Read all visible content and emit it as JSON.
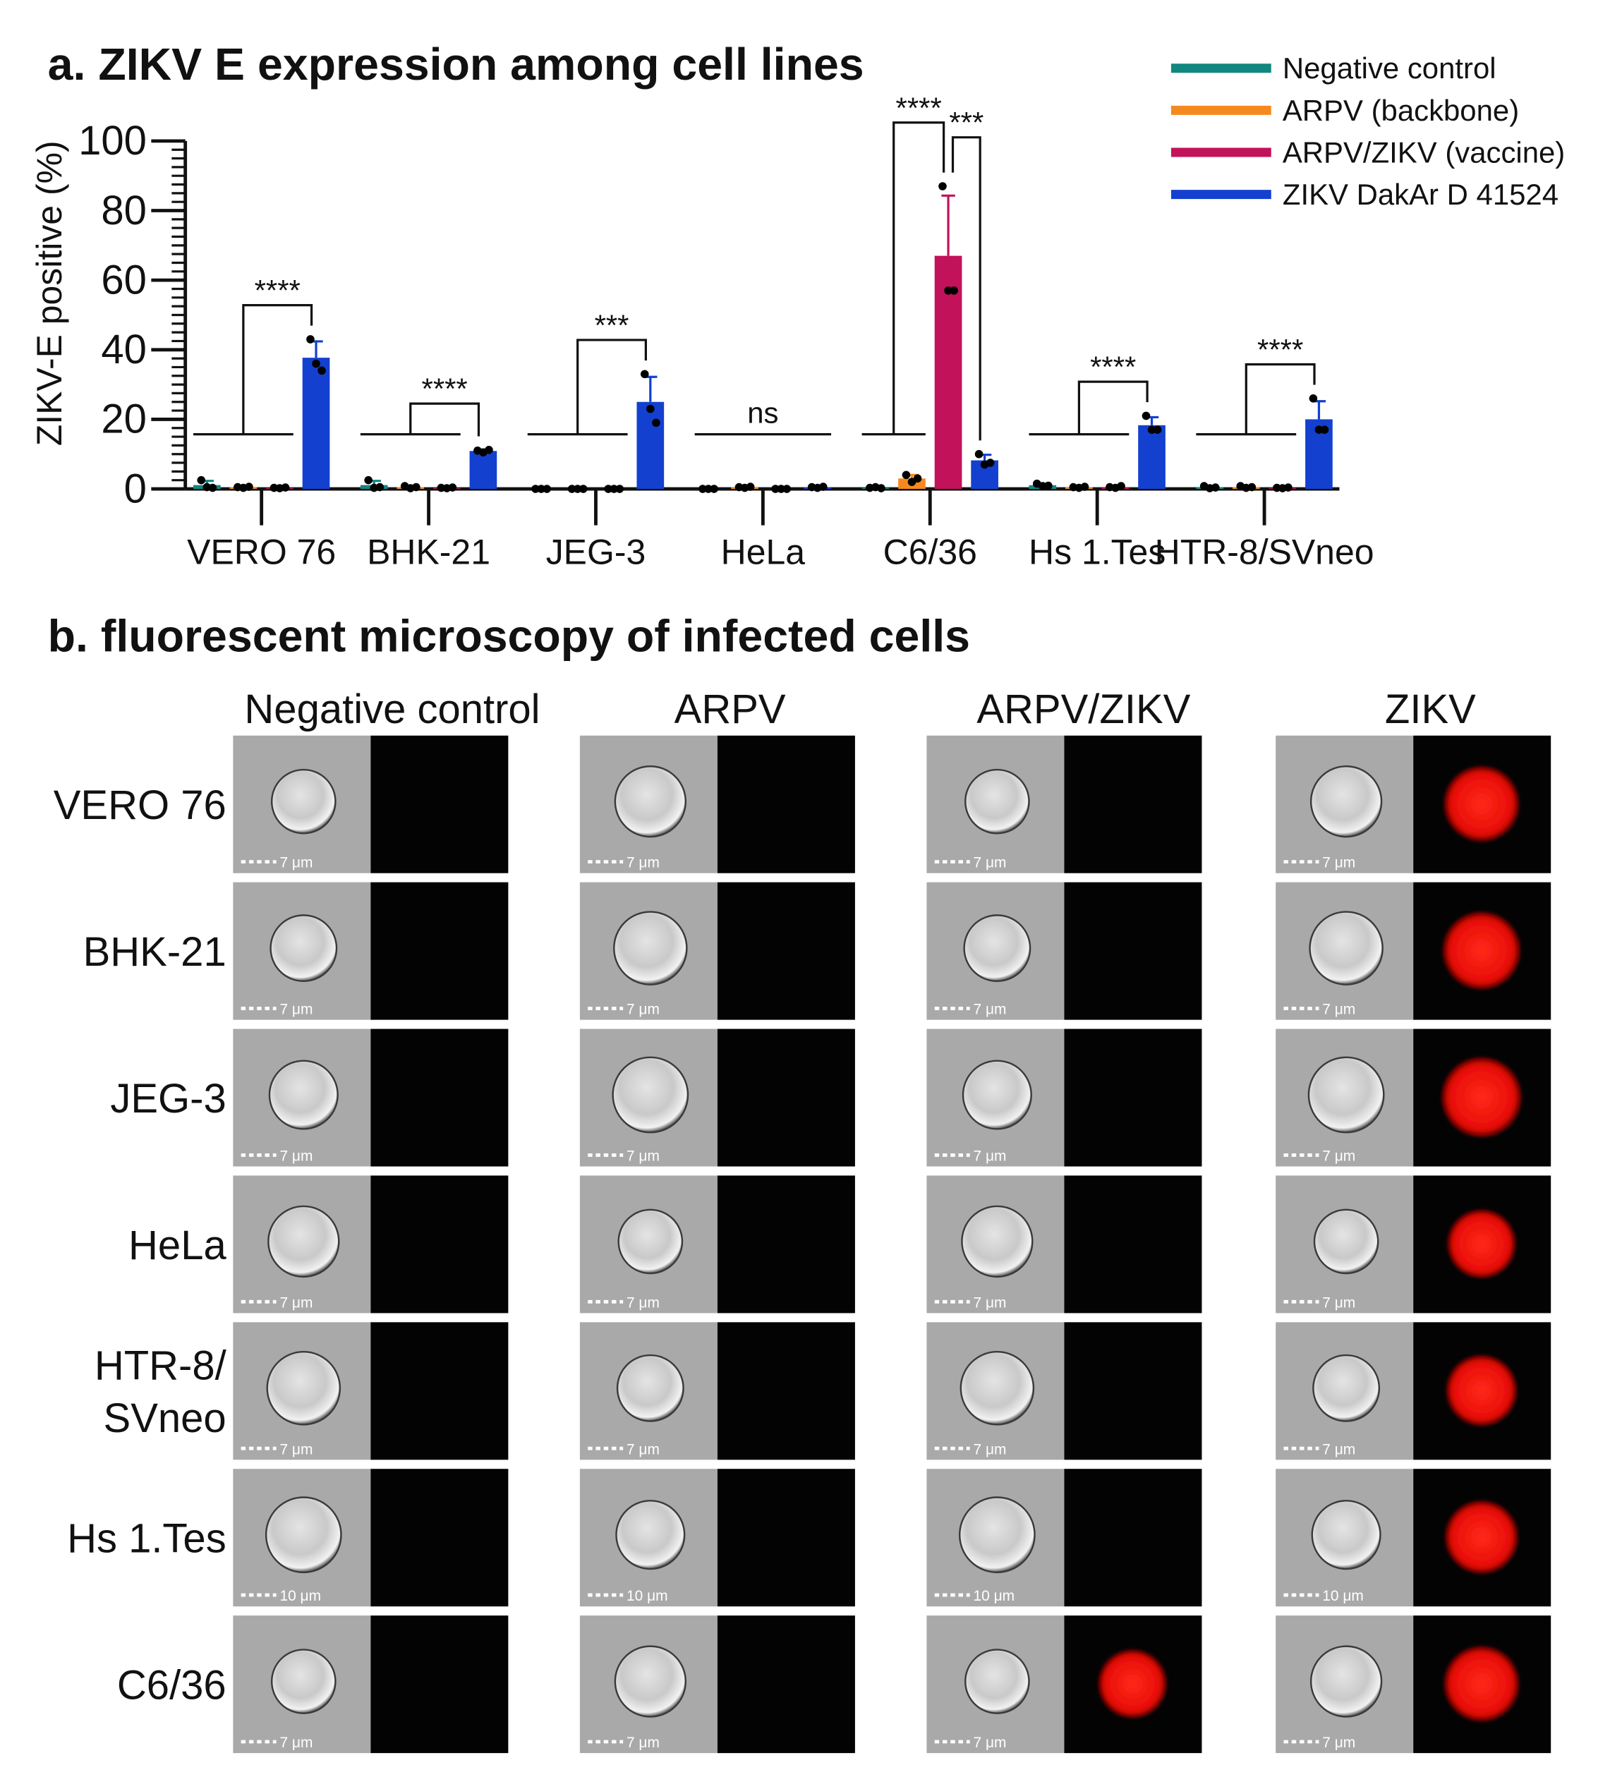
{
  "chart_data": {
    "type": "bar",
    "title": "a. ZIKV E expression among cell lines",
    "y_label": "ZIKV-E positive (%)",
    "categories": [
      "VERO 76",
      "BHK-21",
      "JEG-3",
      "HeLa",
      "C6/36",
      "Hs 1.Tes",
      "HTR-8/SVneo"
    ],
    "series": [
      {
        "name": "Negative control",
        "color": "#12877f",
        "values": [
          1.1,
          1.1,
          0,
          0,
          0.33,
          1.07,
          0.47
        ],
        "errors": [
          1.2,
          1.2,
          0,
          0,
          0.2,
          0.4,
          0.3
        ],
        "points": [
          [
            2.5,
            0.5,
            0.3
          ],
          [
            2.5,
            0.3,
            0.5
          ],
          [
            0,
            0,
            0
          ],
          [
            0,
            0,
            0
          ],
          [
            0.3,
            0.5,
            0.2
          ],
          [
            1.5,
            0.8,
            0.9
          ],
          [
            0.8,
            0.2,
            0.4
          ]
        ]
      },
      {
        "name": "ARPV (backbone)",
        "color": "#f5891f",
        "values": [
          0.47,
          0.5,
          0,
          0.47,
          3,
          0.47,
          0.53
        ],
        "errors": [
          0.2,
          0.3,
          0,
          0.2,
          1,
          0.2,
          0.3
        ],
        "points": [
          [
            0.5,
            0.3,
            0.6
          ],
          [
            0.8,
            0.2,
            0.5
          ],
          [
            0,
            0,
            0
          ],
          [
            0.5,
            0.3,
            0.6
          ],
          [
            4,
            2,
            3
          ],
          [
            0.5,
            0.3,
            0.6
          ],
          [
            0.8,
            0.3,
            0.5
          ]
        ]
      },
      {
        "name": "ARPV/ZIKV (vaccine)",
        "color": "#c2125a",
        "values": [
          0.3,
          0.3,
          0,
          0,
          67,
          0.53,
          0.3
        ],
        "errors": [
          0.1,
          0.1,
          0,
          0,
          17.3,
          0.3,
          0.1
        ],
        "points": [
          [
            0.3,
            0.2,
            0.4
          ],
          [
            0.3,
            0.2,
            0.4
          ],
          [
            0,
            0,
            0
          ],
          [
            0,
            0,
            0
          ],
          [
            87,
            57,
            57
          ],
          [
            0.5,
            0.3,
            0.8
          ],
          [
            0.3,
            0.2,
            0.4
          ]
        ]
      },
      {
        "name": "ZIKV DakAr D 41524",
        "color": "#1340cf",
        "values": [
          37.7,
          10.9,
          25,
          0.47,
          8.2,
          18.3,
          20
        ],
        "errors": [
          4.7,
          0.4,
          7.2,
          0.2,
          1.6,
          2.3,
          5.2
        ],
        "points": [
          [
            43,
            36,
            34
          ],
          [
            11,
            10.5,
            11.2
          ],
          [
            33,
            23,
            19
          ],
          [
            0.5,
            0.3,
            0.6
          ],
          [
            10,
            7,
            7.5
          ],
          [
            21,
            17,
            17
          ],
          [
            26,
            17,
            17
          ]
        ]
      }
    ],
    "ylim": [
      0,
      100
    ],
    "yticks": [
      0,
      20,
      40,
      60,
      80,
      100
    ],
    "legend": "top-right",
    "significance": [
      [
        {
          "label": "****",
          "left": [
            0,
            1,
            2
          ],
          "right": [
            3
          ]
        }
      ],
      [
        {
          "label": "****",
          "left": [
            0,
            1,
            2
          ],
          "right": [
            3
          ]
        }
      ],
      [
        {
          "label": "***",
          "left": [
            0,
            1,
            2
          ],
          "right": [
            3
          ]
        }
      ],
      [
        {
          "label": "ns",
          "left": [
            0,
            1,
            2,
            3
          ],
          "right": []
        }
      ],
      [
        {
          "label": "****",
          "left": [
            0,
            1
          ],
          "right": [
            2
          ]
        },
        {
          "label": "***",
          "left": [
            2
          ],
          "right": [
            3
          ]
        }
      ],
      [
        {
          "label": "****",
          "left": [
            0,
            1,
            2
          ],
          "right": [
            3
          ]
        }
      ],
      [
        {
          "label": "****",
          "left": [
            0,
            1,
            2
          ],
          "right": [
            3
          ]
        }
      ]
    ]
  },
  "microscopy": {
    "title": "b. fluorescent microscopy of infected cells",
    "columns": [
      "Negative control",
      "ARPV",
      "ARPV/ZIKV",
      "ZIKV"
    ],
    "rows": [
      {
        "label": [
          "VERO 76"
        ],
        "scale_bar": "7 μm",
        "signal": [
          false,
          false,
          false,
          true
        ]
      },
      {
        "label": [
          "BHK-21"
        ],
        "scale_bar": "7 μm",
        "signal": [
          false,
          false,
          false,
          true
        ]
      },
      {
        "label": [
          "JEG-3"
        ],
        "scale_bar": "7 μm",
        "signal": [
          false,
          false,
          false,
          true
        ]
      },
      {
        "label": [
          "HeLa"
        ],
        "scale_bar": "7 μm",
        "signal": [
          false,
          false,
          false,
          true
        ]
      },
      {
        "label": [
          "HTR-8/",
          "SVneo"
        ],
        "scale_bar": "7 μm",
        "signal": [
          false,
          false,
          false,
          true
        ]
      },
      {
        "label": [
          "Hs 1.Tes"
        ],
        "scale_bar": "10 μm",
        "signal": [
          false,
          false,
          false,
          true
        ]
      },
      {
        "label": [
          "C6/36"
        ],
        "scale_bar": "7 μm",
        "signal": [
          false,
          false,
          true,
          true
        ]
      }
    ]
  }
}
